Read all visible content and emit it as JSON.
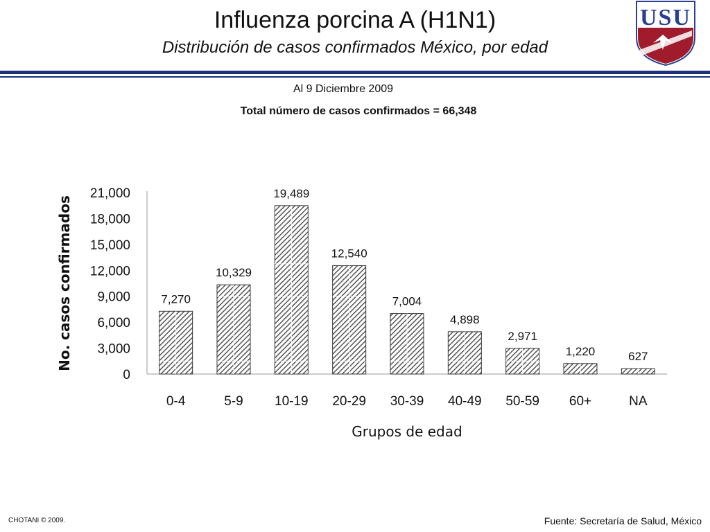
{
  "header": {
    "title": "Influenza porcina A (H1N1)",
    "subtitle": "Distribución de casos confirmados México, por edad",
    "logo_letters": "USU"
  },
  "info": {
    "date": "Al 9 Diciembre 2009",
    "total": "Total número de casos confirmados = 66,348"
  },
  "footer": {
    "copyright": "CHOTANI © 2009.",
    "source": "Fuente: Secretaría de Salud, México"
  },
  "colors": {
    "rule": "#1f2f7a",
    "logo_blue": "#2a3f8f",
    "logo_red": "#a01c2c",
    "bar_fill": "#555555"
  },
  "chart_data": {
    "type": "bar",
    "categories": [
      "0-4",
      "5-9",
      "10-19",
      "20-29",
      "30-39",
      "40-49",
      "50-59",
      "60+",
      "NA"
    ],
    "values": [
      7270,
      10329,
      19489,
      12540,
      7004,
      4898,
      2971,
      1220,
      627
    ],
    "value_labels": [
      "7,270",
      "10,329",
      "19,489",
      "12,540",
      "7,004",
      "4,898",
      "2,971",
      "1,220",
      "627"
    ],
    "xlabel": "Grupos de edad",
    "ylabel": "No. casos confirmados",
    "yticks": [
      0,
      3000,
      6000,
      9000,
      12000,
      15000,
      18000,
      21000
    ],
    "ytick_labels": [
      "0",
      "3,000",
      "6,000",
      "9,000",
      "12,000",
      "15,000",
      "18,000",
      "21,000"
    ],
    "ylim": [
      0,
      21000
    ],
    "grid": false,
    "legend": "none",
    "bar_pattern": "diagonal-hatch"
  }
}
